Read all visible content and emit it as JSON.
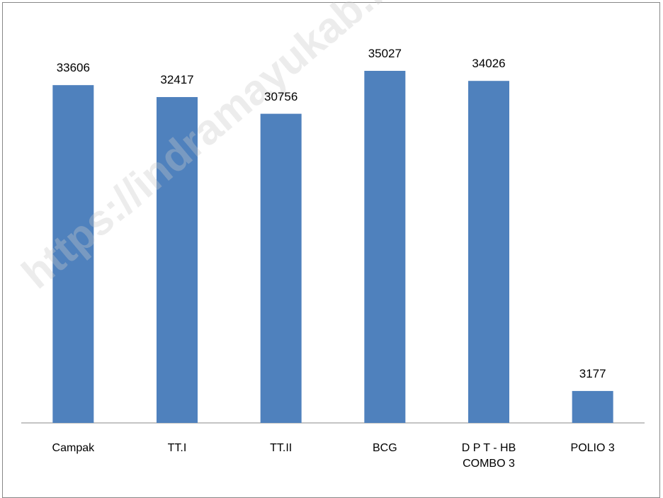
{
  "chart_data": {
    "type": "bar",
    "categories": [
      "Campak",
      "TT.I",
      "TT.II",
      "BCG",
      "D P T - HB COMBO 3",
      "POLIO 3"
    ],
    "values": [
      33606,
      32417,
      30756,
      35027,
      34026,
      3177
    ],
    "color": "#4f81bd",
    "watermark": "https://indramayukab.bps.go.id"
  }
}
